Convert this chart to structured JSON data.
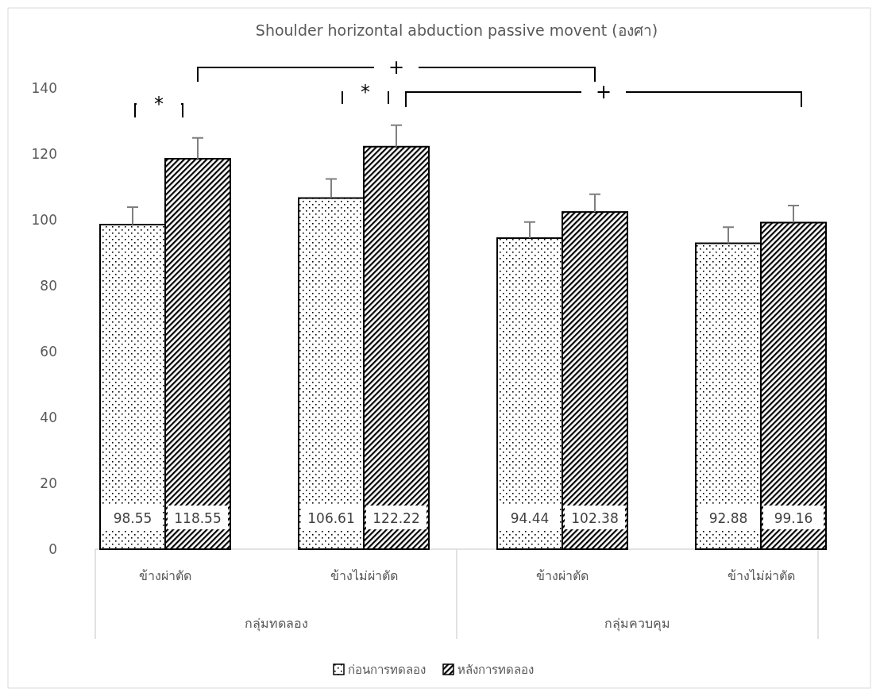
{
  "chart_data": {
    "type": "bar",
    "title": "Shoulder horizontal abduction passive movent (องศา)",
    "categories": [
      "ข้างผ่าตัด",
      "ข้างไม่ผ่าตัด",
      "ข้างผ่าตัด",
      "ข้างไม่ผ่าตัด"
    ],
    "series": [
      {
        "name": "ก่อนการทดลอง",
        "color": "#000000",
        "values": [
          98.55,
          106.61,
          94.44,
          92.88
        ],
        "errors": [
          5.3,
          5.8,
          4.9,
          4.9
        ]
      },
      {
        "name": "หลังการทดลอง",
        "color": "#000000",
        "values": [
          118.55,
          122.22,
          102.38,
          99.16
        ],
        "errors": [
          6.3,
          6.5,
          5.4,
          5.2
        ]
      }
    ],
    "ylim": [
      0,
      140
    ],
    "yticks": [
      0,
      20,
      40,
      60,
      80,
      100,
      120,
      140
    ],
    "data_labels": true,
    "legend": "bottom",
    "grid": false,
    "annotations": [
      "*",
      "*",
      "+",
      "+",
      "กลุ่มทดลอง",
      "กลุ่มควบคุม"
    ]
  }
}
